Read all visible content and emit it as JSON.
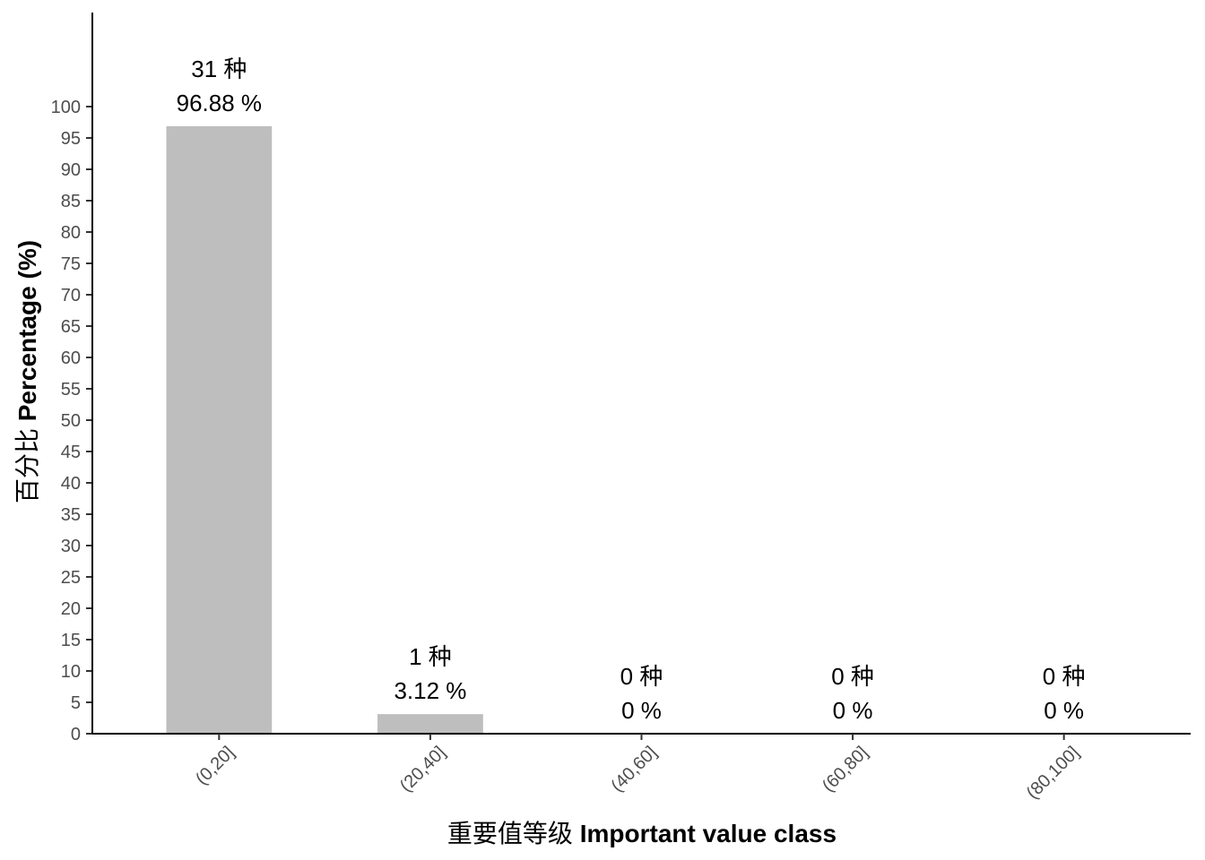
{
  "chart_data": {
    "type": "bar",
    "title": "",
    "categories": [
      "(0,20]",
      "(20,40]",
      "(40,60]",
      "(60,80]",
      "(80,100]"
    ],
    "values": [
      96.88,
      3.12,
      0,
      0,
      0
    ],
    "counts_label": [
      "31 种",
      "1 种",
      "0 种",
      "0 种",
      "0 种"
    ],
    "percent_label": [
      "96.88 %",
      "3.12 %",
      "0 %",
      "0 %",
      "0 %"
    ],
    "xlabel_cn": "重要值等级",
    "xlabel_en": "Important value class",
    "ylabel_cn": "百分比",
    "ylabel_en": "Percentage (%)",
    "ylim": [
      0,
      115
    ],
    "yticks": [
      0,
      5,
      10,
      15,
      20,
      25,
      30,
      35,
      40,
      45,
      50,
      55,
      60,
      65,
      70,
      75,
      80,
      85,
      90,
      95,
      100
    ],
    "grid": false,
    "colors": {
      "bar": "#bebebe",
      "axis": "#000000",
      "tick_text": "#4d4d4d"
    }
  }
}
